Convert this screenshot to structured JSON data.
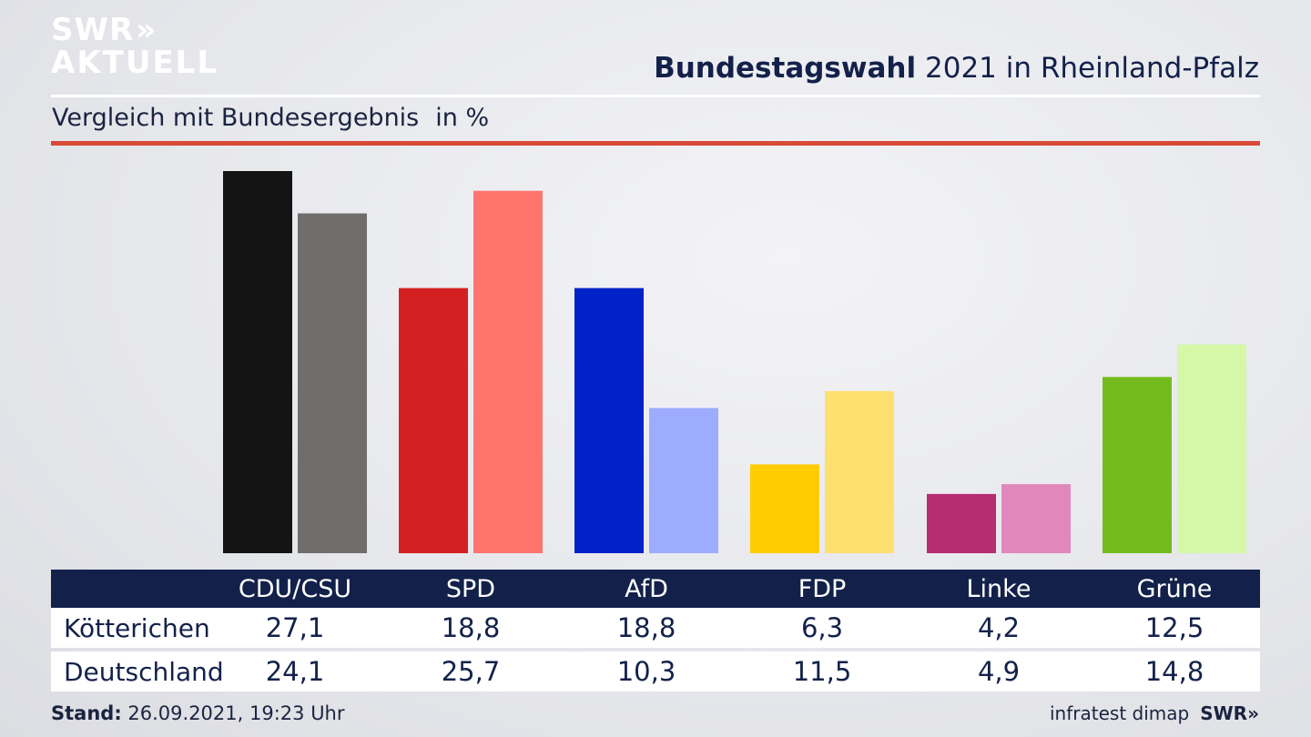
{
  "brand": {
    "logo_line1": "SWR",
    "logo_chevrons": "»",
    "logo_line2": "AKTUELL"
  },
  "header": {
    "title_bold": "Bundestagswahl",
    "title_rest": "2021 in Rheinland-Pfalz",
    "subtitle": "Vergleich mit Bundesergebnis",
    "unit": "in %"
  },
  "colors": {
    "navy": "#13214a",
    "accent_red": "#d84a36",
    "local": [
      "#141414",
      "#d42020",
      "#0022c8",
      "#ffcc00",
      "#b82c72",
      "#74bc1e"
    ],
    "national": [
      "#706e6c",
      "#ff746c",
      "#9eacff",
      "#fee070",
      "#e088bc",
      "#d4f8a8"
    ]
  },
  "chart_data": {
    "type": "bar",
    "categories": [
      "CDU/CSU",
      "SPD",
      "AfD",
      "FDP",
      "Linke",
      "Grüne"
    ],
    "series": [
      {
        "name": "Kötterichen",
        "values": [
          27.1,
          18.8,
          18.8,
          6.3,
          4.2,
          12.5
        ]
      },
      {
        "name": "Deutschland",
        "values": [
          24.1,
          25.7,
          10.3,
          11.5,
          4.9,
          14.8
        ]
      }
    ],
    "value_labels": [
      [
        "27,1",
        "18,8",
        "18,8",
        "6,3",
        "4,2",
        "12,5"
      ],
      [
        "24,1",
        "25,7",
        "10,3",
        "11,5",
        "4,9",
        "14,8"
      ]
    ],
    "ylim": [
      0,
      27.1
    ],
    "grid": false
  },
  "footer": {
    "stand_label": "Stand:",
    "stand_value": "26.09.2021, 19:23 Uhr",
    "source": "infratest dimap",
    "brand": "SWR»"
  }
}
